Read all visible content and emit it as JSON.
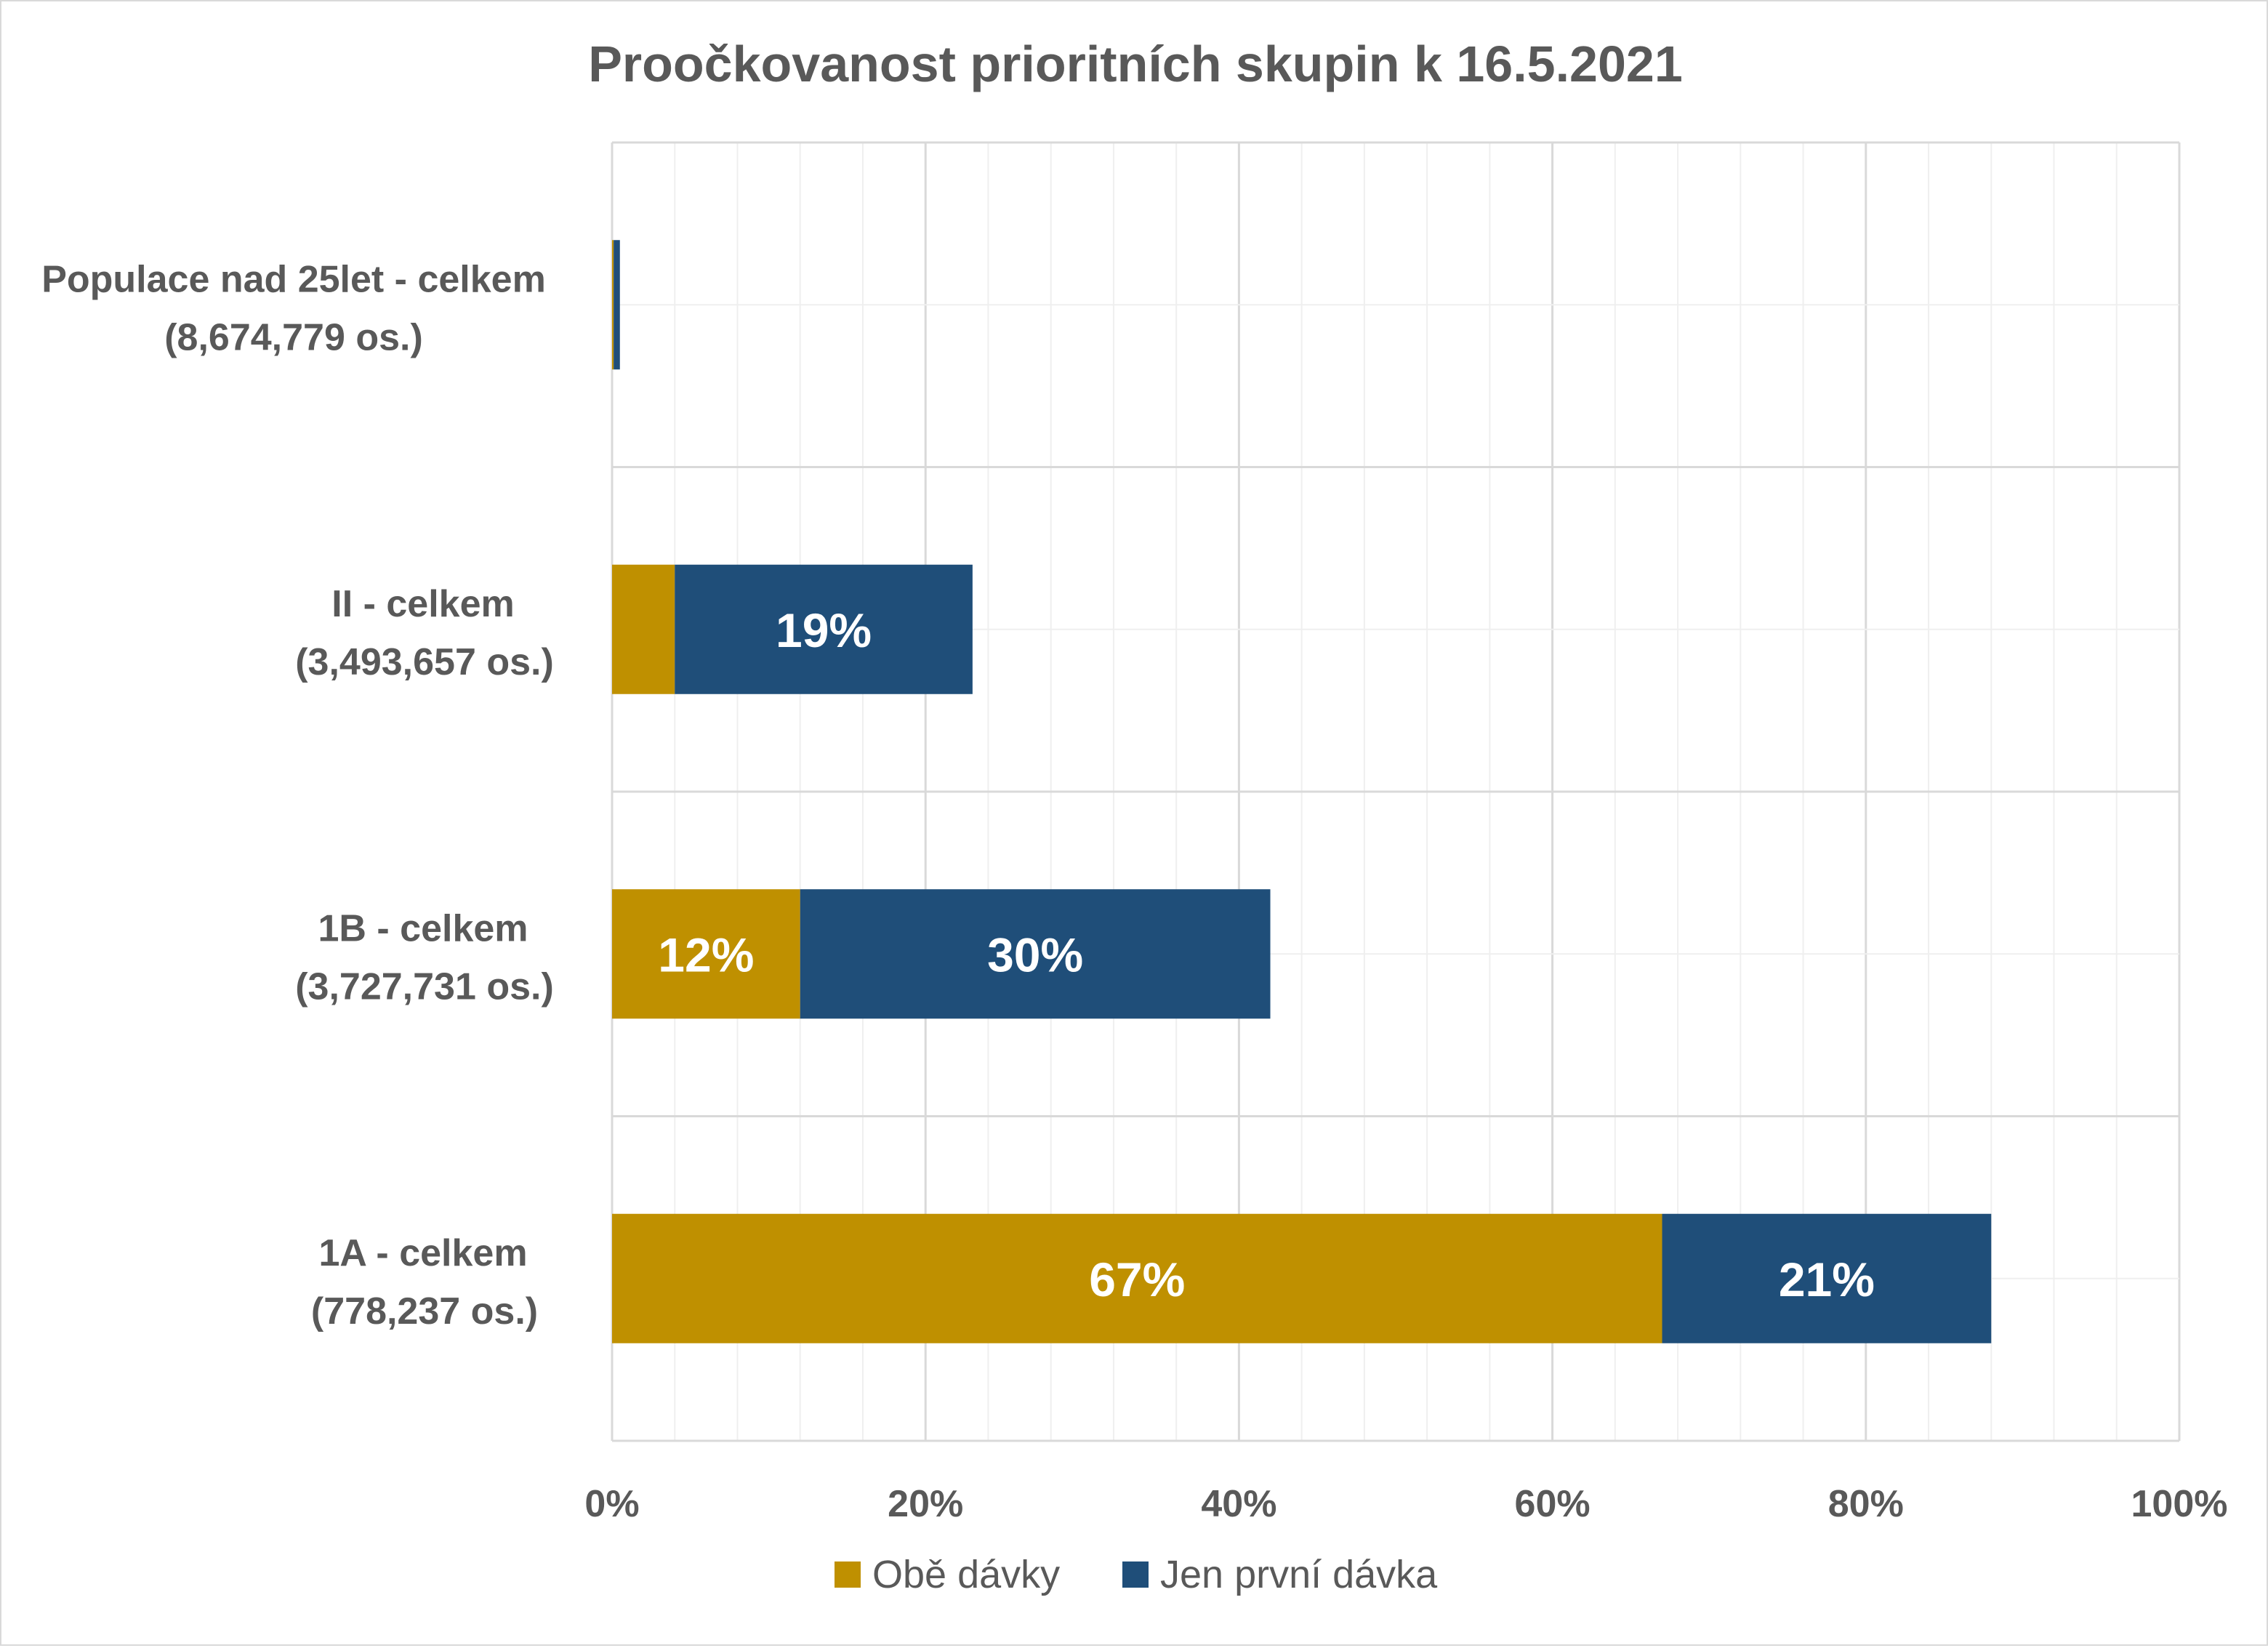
{
  "chart_data": {
    "type": "bar",
    "orientation": "horizontal",
    "stacked": true,
    "title": "Proočkovanost prioritních skupin k 16.5.2021",
    "categories": [
      [
        "1A - celkem",
        "(778,237 os.)"
      ],
      [
        "1B - celkem",
        "(3,727,731 os.)"
      ],
      [
        "II - celkem",
        "(3,493,657 os.)"
      ],
      [
        "Populace nad 25let - celkem",
        "(8,674,779 os.)"
      ]
    ],
    "series": [
      {
        "name": "Obě dávky",
        "color": "#bf9000",
        "values": [
          0.67,
          0.12,
          0.04,
          0.001
        ],
        "labels": [
          "67%",
          "12%",
          "",
          ""
        ]
      },
      {
        "name": "Jen první dávka",
        "color": "#1f4e79",
        "values": [
          0.21,
          0.3,
          0.19,
          0.004
        ],
        "labels": [
          "21%",
          "30%",
          "19%",
          ""
        ]
      }
    ],
    "xlim": [
      0,
      1
    ],
    "xticks": [
      0,
      0.2,
      0.4,
      0.6,
      0.8,
      1.0
    ],
    "xtick_labels": [
      "0%",
      "20%",
      "40%",
      "60%",
      "80%",
      "100%"
    ],
    "grid": "major and minor vertical gridlines",
    "legend_position": "bottom"
  }
}
